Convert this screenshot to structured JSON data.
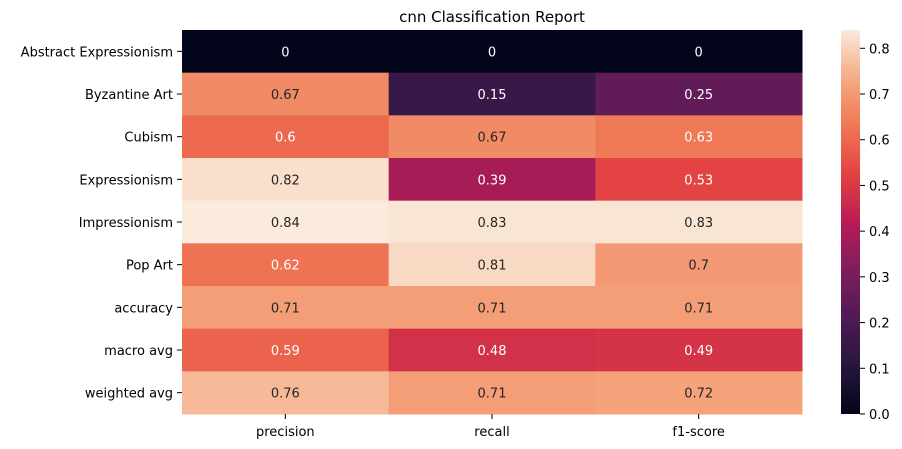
{
  "chart_data": {
    "type": "heatmap",
    "title": "cnn Classification Report",
    "xlabel": "",
    "ylabel": "",
    "columns": [
      "precision",
      "recall",
      "f1-score"
    ],
    "rows": [
      "Abstract Expressionism",
      "Byzantine Art",
      "Cubism",
      "Expressionism",
      "Impressionism",
      "Pop Art",
      "accuracy",
      "macro avg",
      "weighted avg"
    ],
    "values": [
      [
        0,
        0,
        0
      ],
      [
        0.67,
        0.15,
        0.25
      ],
      [
        0.6,
        0.67,
        0.63
      ],
      [
        0.82,
        0.39,
        0.53
      ],
      [
        0.84,
        0.83,
        0.83
      ],
      [
        0.62,
        0.81,
        0.7
      ],
      [
        0.71,
        0.71,
        0.71
      ],
      [
        0.59,
        0.48,
        0.49
      ],
      [
        0.76,
        0.71,
        0.72
      ]
    ],
    "value_labels": [
      [
        "0",
        "0",
        "0"
      ],
      [
        "0.67",
        "0.15",
        "0.25"
      ],
      [
        "0.6",
        "0.67",
        "0.63"
      ],
      [
        "0.82",
        "0.39",
        "0.53"
      ],
      [
        "0.84",
        "0.83",
        "0.83"
      ],
      [
        "0.62",
        "0.81",
        "0.7"
      ],
      [
        "0.71",
        "0.71",
        "0.71"
      ],
      [
        "0.59",
        "0.48",
        "0.49"
      ],
      [
        "0.76",
        "0.71",
        "0.72"
      ]
    ],
    "colorscale": "rocket",
    "colorbar": {
      "range": [
        0,
        0.84
      ],
      "ticks": [
        0.0,
        0.1,
        0.2,
        0.3,
        0.4,
        0.5,
        0.6,
        0.7,
        0.8
      ],
      "tick_labels": [
        "0.0",
        "0.1",
        "0.2",
        "0.3",
        "0.4",
        "0.5",
        "0.6",
        "0.7",
        "0.8"
      ]
    },
    "grid": false,
    "legend": "colorbar-right"
  }
}
